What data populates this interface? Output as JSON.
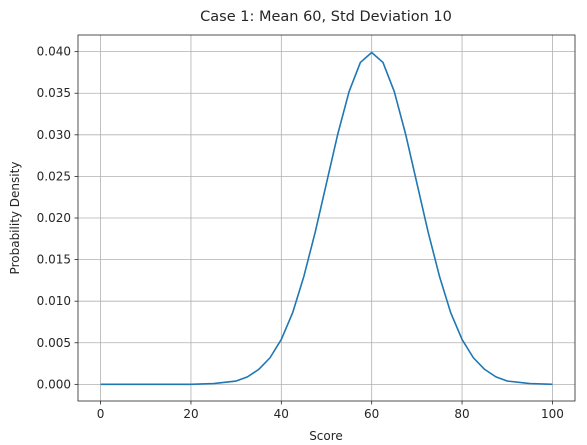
{
  "chart_data": {
    "type": "line",
    "title": "Case 1: Mean 60, Std Deviation 10",
    "xlabel": "Score",
    "ylabel": "Probability Density",
    "xlim": [
      -5,
      105
    ],
    "ylim": [
      -0.002,
      0.042
    ],
    "grid": true,
    "x_ticks": [
      {
        "value": 0,
        "label": "0"
      },
      {
        "value": 20,
        "label": "20"
      },
      {
        "value": 40,
        "label": "40"
      },
      {
        "value": 60,
        "label": "60"
      },
      {
        "value": 80,
        "label": "80"
      },
      {
        "value": 100,
        "label": "100"
      }
    ],
    "y_ticks": [
      {
        "value": 0.0,
        "label": "0.000"
      },
      {
        "value": 0.005,
        "label": "0.005"
      },
      {
        "value": 0.01,
        "label": "0.010"
      },
      {
        "value": 0.015,
        "label": "0.015"
      },
      {
        "value": 0.02,
        "label": "0.020"
      },
      {
        "value": 0.025,
        "label": "0.025"
      },
      {
        "value": 0.03,
        "label": "0.030"
      },
      {
        "value": 0.035,
        "label": "0.035"
      },
      {
        "value": 0.04,
        "label": "0.040"
      }
    ],
    "series": [
      {
        "color": "#1f77b4",
        "x": [
          0,
          5,
          10,
          15,
          20,
          25,
          30,
          32.5,
          35,
          37.5,
          40,
          42.5,
          45,
          47.5,
          50,
          52.5,
          55,
          57.5,
          60,
          62.5,
          65,
          67.5,
          70,
          72.5,
          75,
          77.5,
          80,
          82.5,
          85,
          87.5,
          90,
          95,
          100
        ],
        "y": [
          0.0,
          0.0,
          0.0,
          0.0,
          0.0,
          0.0001,
          0.0004,
          0.0009,
          0.0018,
          0.0032,
          0.0054,
          0.0086,
          0.013,
          0.0183,
          0.0242,
          0.0301,
          0.0352,
          0.0387,
          0.0399,
          0.0387,
          0.0352,
          0.0301,
          0.0242,
          0.0183,
          0.013,
          0.0086,
          0.0054,
          0.0032,
          0.0018,
          0.0009,
          0.0004,
          0.0001,
          0.0
        ]
      }
    ]
  }
}
